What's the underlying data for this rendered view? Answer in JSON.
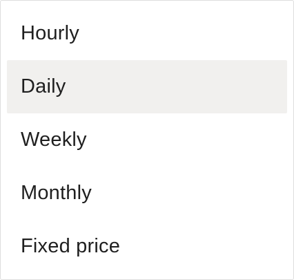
{
  "menu": {
    "options": [
      {
        "label": "Hourly"
      },
      {
        "label": "Daily",
        "highlighted": true
      },
      {
        "label": "Weekly"
      },
      {
        "label": "Monthly"
      },
      {
        "label": "Fixed price"
      }
    ]
  },
  "colors": {
    "highlight_bg": "#f1f0ee",
    "text": "#1f1f1f",
    "border": "#dddddd"
  }
}
